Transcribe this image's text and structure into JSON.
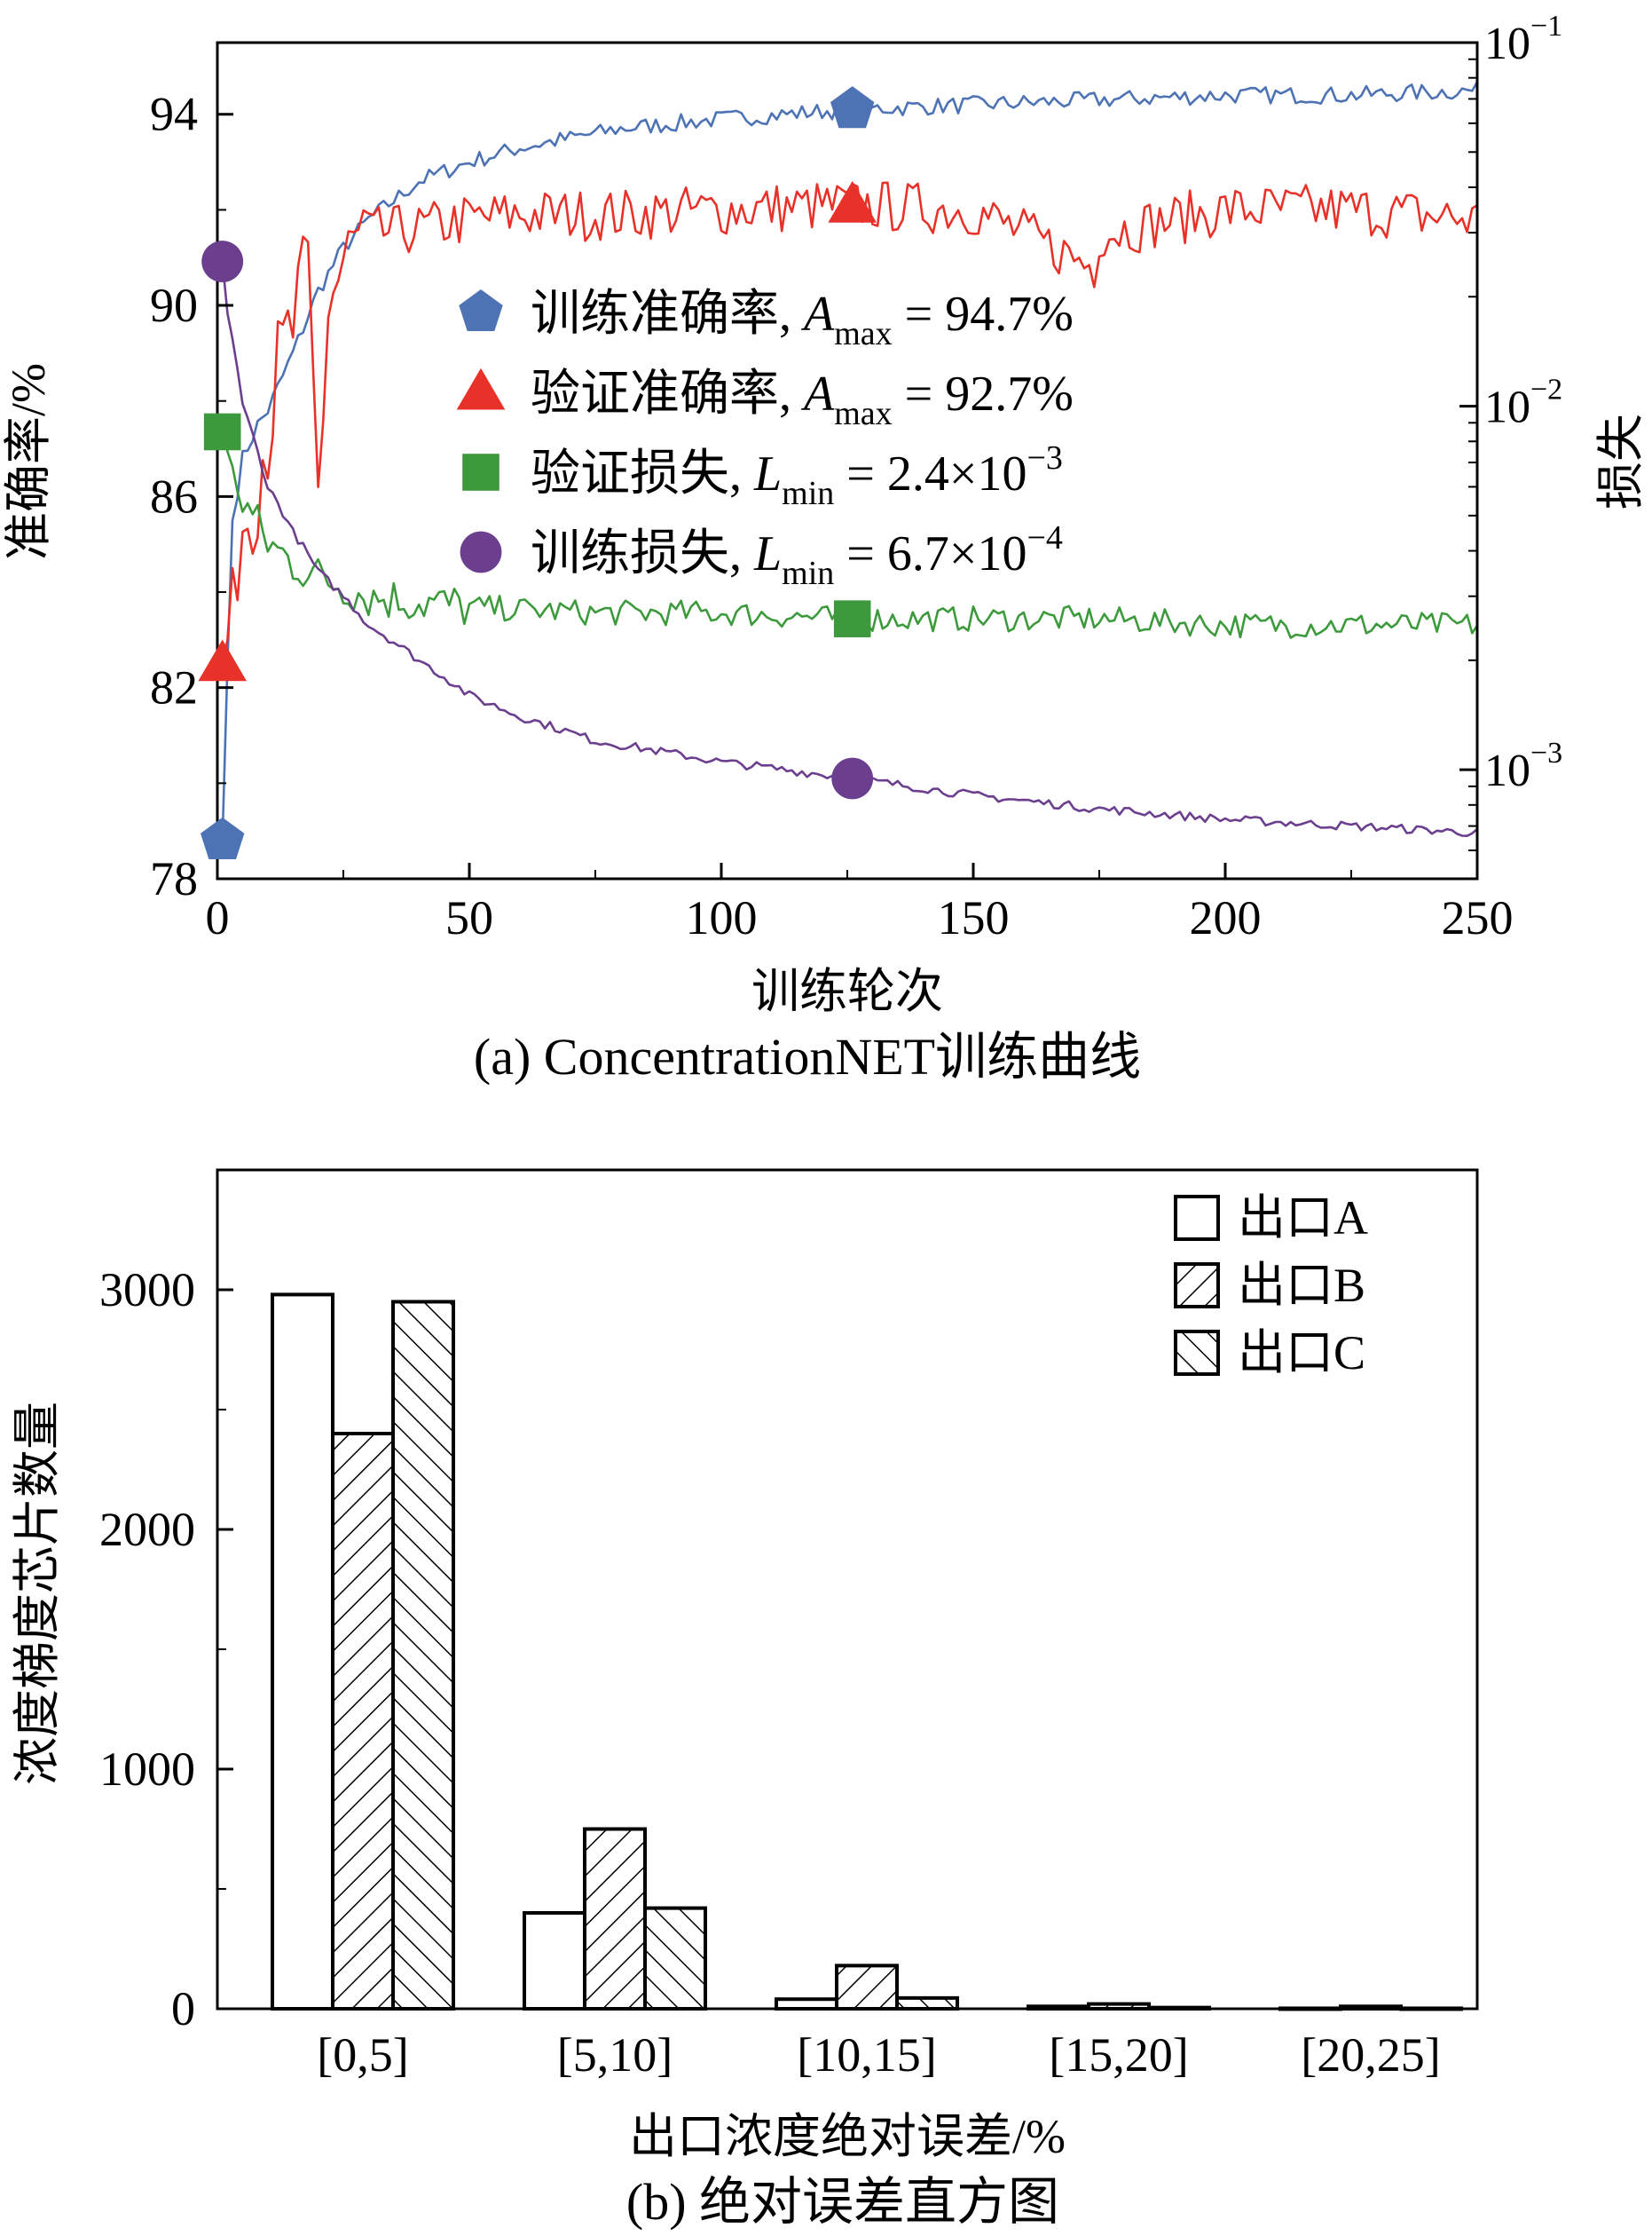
{
  "colors": {
    "train_acc": "#4E73B5",
    "val_acc": "#E83128",
    "val_loss": "#3C9A3C",
    "train_loss": "#6B3E8E",
    "axis": "#000000",
    "bar_fill": "#ffffff"
  },
  "chart_data": [
    {
      "type": "line",
      "caption": "(a) ConcentrationNET训练曲线",
      "xlabel": "训练轮次",
      "ylabel": "准确率/%",
      "y2label": "损失",
      "xlim": [
        0,
        250
      ],
      "ylim": [
        78,
        95.5
      ],
      "y2lim_log10": [
        -3.3,
        -1.0
      ],
      "xticks": [
        "0",
        "50",
        "100",
        "150",
        "200",
        "250"
      ],
      "yticks": [
        "78",
        "82",
        "86",
        "90",
        "94"
      ],
      "y2ticks": [
        {
          "base": "10",
          "exp": "−1",
          "log": -1
        },
        {
          "base": "10",
          "exp": "−2",
          "log": -2
        },
        {
          "base": "10",
          "exp": "−3",
          "log": -3
        }
      ],
      "legend": [
        {
          "label": "训练准确率, ",
          "sym": "A",
          "sub": "max",
          "rest": " = 94.7%",
          "marker": "pentagon",
          "series": "train_acc"
        },
        {
          "label": "验证准确率, ",
          "sym": "A",
          "sub": "max",
          "rest": " = 92.7%",
          "marker": "triangle",
          "series": "val_acc"
        },
        {
          "label": "验证损失, ",
          "sym": "L",
          "sub": "min",
          "rest": " = 2.4×10",
          "sup": "−3",
          "marker": "square",
          "series": "val_loss"
        },
        {
          "label": "训练损失, ",
          "sym": "L",
          "sub": "min",
          "rest": " = 6.7×10",
          "sup": "−4",
          "marker": "circle",
          "series": "train_loss"
        }
      ],
      "series": [
        {
          "name": "train_acc",
          "axis": "left",
          "marker": "pentagon",
          "x": [
            1,
            2,
            3,
            5,
            8,
            10,
            15,
            20,
            25,
            30,
            40,
            50,
            60,
            80,
            100,
            125,
            150,
            175,
            200,
            225,
            250
          ],
          "y": [
            78.8,
            82.5,
            85.5,
            86.8,
            87.5,
            87.8,
            89.0,
            90.3,
            91.2,
            91.8,
            92.6,
            93.0,
            93.3,
            93.7,
            93.9,
            94.1,
            94.2,
            94.3,
            94.4,
            94.4,
            94.5
          ],
          "markers_at": [
            1,
            126
          ]
        },
        {
          "name": "val_acc",
          "axis": "left",
          "marker": "triangle",
          "x": [
            1,
            2,
            3,
            5,
            8,
            10,
            12,
            15,
            18,
            20,
            22,
            25,
            30,
            40,
            50,
            60,
            80,
            100,
            125,
            150,
            174,
            175,
            200,
            225,
            250
          ],
          "y": [
            82.5,
            83.0,
            84.5,
            85.5,
            86.5,
            87.5,
            88.5,
            89.5,
            90.5,
            86.0,
            90.0,
            90.8,
            91.5,
            91.6,
            91.8,
            91.9,
            91.9,
            92.0,
            92.1,
            92.0,
            90.8,
            91.5,
            92.0,
            92.0,
            91.8
          ],
          "markers_at": [
            1,
            126
          ]
        },
        {
          "name": "val_loss",
          "axis": "right_log",
          "x": [
            1,
            2,
            5,
            8,
            10,
            15,
            20,
            25,
            30,
            40,
            50,
            75,
            100,
            125,
            150,
            175,
            200,
            225,
            250
          ],
          "y": [
            0.0085,
            0.0075,
            0.0055,
            0.0047,
            0.0042,
            0.0037,
            0.0034,
            0.0032,
            0.003,
            0.0029,
            0.0028,
            0.0027,
            0.0027,
            0.0026,
            0.0026,
            0.0026,
            0.0025,
            0.0025,
            0.0025
          ],
          "markers_at": [
            1,
            126
          ]
        },
        {
          "name": "train_loss",
          "axis": "right_log",
          "x": [
            1,
            2,
            5,
            8,
            10,
            15,
            20,
            25,
            30,
            40,
            50,
            60,
            75,
            100,
            125,
            150,
            175,
            200,
            225,
            250
          ],
          "y": [
            0.025,
            0.018,
            0.01,
            0.0075,
            0.006,
            0.0045,
            0.0035,
            0.003,
            0.0025,
            0.002,
            0.0016,
            0.0014,
            0.0012,
            0.00105,
            0.00095,
            0.00085,
            0.00078,
            0.00073,
            0.0007,
            0.00067
          ],
          "markers_at": [
            1,
            126
          ]
        }
      ]
    },
    {
      "type": "bar",
      "caption": "(b) 绝对误差直方图",
      "xlabel": "出口浓度绝对误差/%",
      "ylabel": "浓度梯度芯片数量",
      "ylim": [
        0,
        3500
      ],
      "yticks": [
        "0",
        "1000",
        "2000",
        "3000"
      ],
      "categories": [
        "[0,5]",
        "[5,10]",
        "[10,15]",
        "[15,20]",
        "[20,25]"
      ],
      "series": [
        {
          "name": "出口A",
          "pattern": "none",
          "values": [
            2980,
            400,
            40,
            10,
            2
          ]
        },
        {
          "name": "出口B",
          "pattern": "forward",
          "values": [
            2400,
            750,
            180,
            20,
            10
          ]
        },
        {
          "name": "出口C",
          "pattern": "back",
          "values": [
            2950,
            420,
            45,
            5,
            2
          ]
        }
      ],
      "legend_position": "top-right"
    }
  ]
}
